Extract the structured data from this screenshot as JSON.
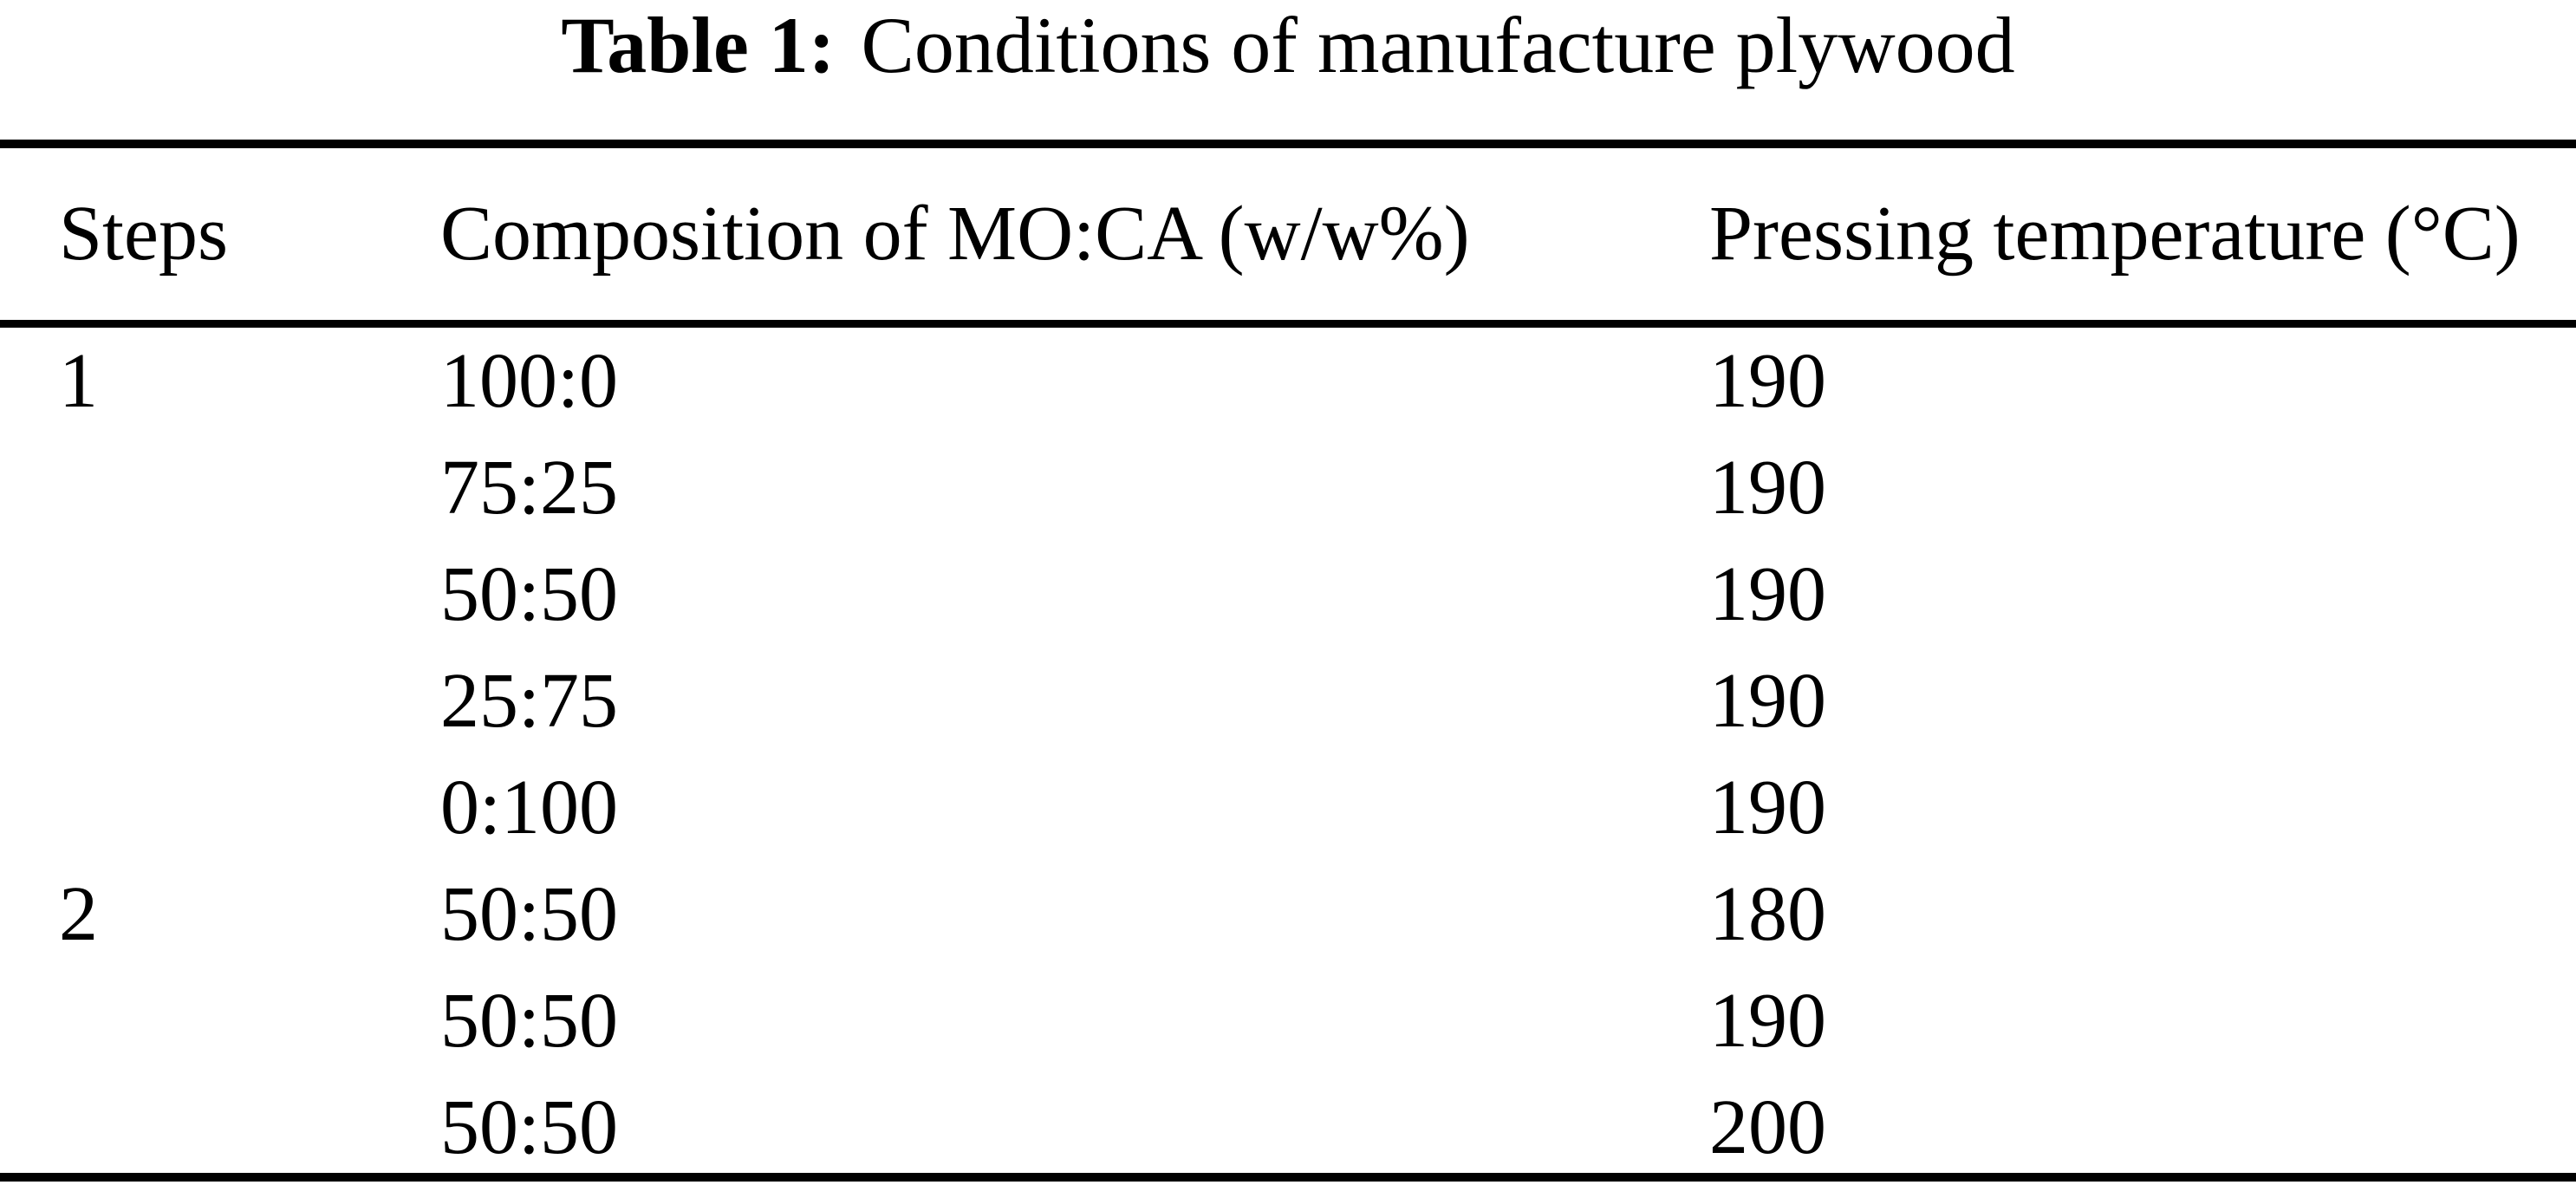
{
  "title": {
    "label": "Table 1:",
    "text": "Conditions of manufacture plywood"
  },
  "table": {
    "headers": {
      "steps": "Steps",
      "composition": "Composition of MO:CA (w/w%)",
      "temperature": "Pressing temperature (°C)"
    },
    "rows": [
      {
        "step": "1",
        "composition": "100:0",
        "temperature": "190"
      },
      {
        "step": "",
        "composition": "75:25",
        "temperature": "190"
      },
      {
        "step": "",
        "composition": "50:50",
        "temperature": "190"
      },
      {
        "step": "",
        "composition": "25:75",
        "temperature": "190"
      },
      {
        "step": "",
        "composition": "0:100",
        "temperature": "190"
      },
      {
        "step": "2",
        "composition": "50:50",
        "temperature": "180"
      },
      {
        "step": "",
        "composition": "50:50",
        "temperature": "190"
      },
      {
        "step": "",
        "composition": "50:50",
        "temperature": "200"
      }
    ]
  },
  "colors": {
    "background": "#ffffff",
    "text": "#000000",
    "rule": "#000000"
  }
}
